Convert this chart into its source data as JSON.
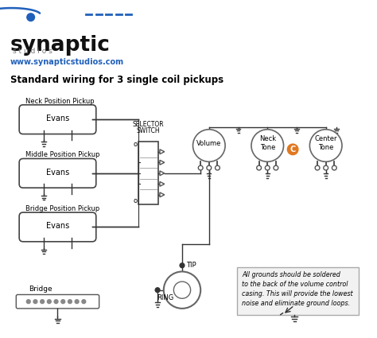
{
  "title": "Standard wiring for 3 single coil pickups",
  "logo_text": "synaptic",
  "logo_sub": "s t u d i o s",
  "logo_url": "www.synapticstudios.com",
  "bg_color": "#ffffff",
  "text_color": "#000000",
  "line_color": "#333333",
  "blue_color": "#2060bb",
  "pickup_labels": [
    "Neck Position Pickup",
    "Middle Position Pickup",
    "Bridge Position Pickup"
  ],
  "pickup_sub": "Evans",
  "bridge_label": "Bridge",
  "selector_labels": [
    "SELECTOR",
    "SWITCH"
  ],
  "pot_labels": [
    "Volume",
    "Neck\nTone",
    "Center\nTone"
  ],
  "tip_label": "TIP",
  "ring_label": "RING",
  "note_text": "All grounds should be soldered\nto the back of the volume control\ncasing. This will provide the lowest\nnoise and eliminate ground loops.",
  "orange_dot_color": "#e07820"
}
